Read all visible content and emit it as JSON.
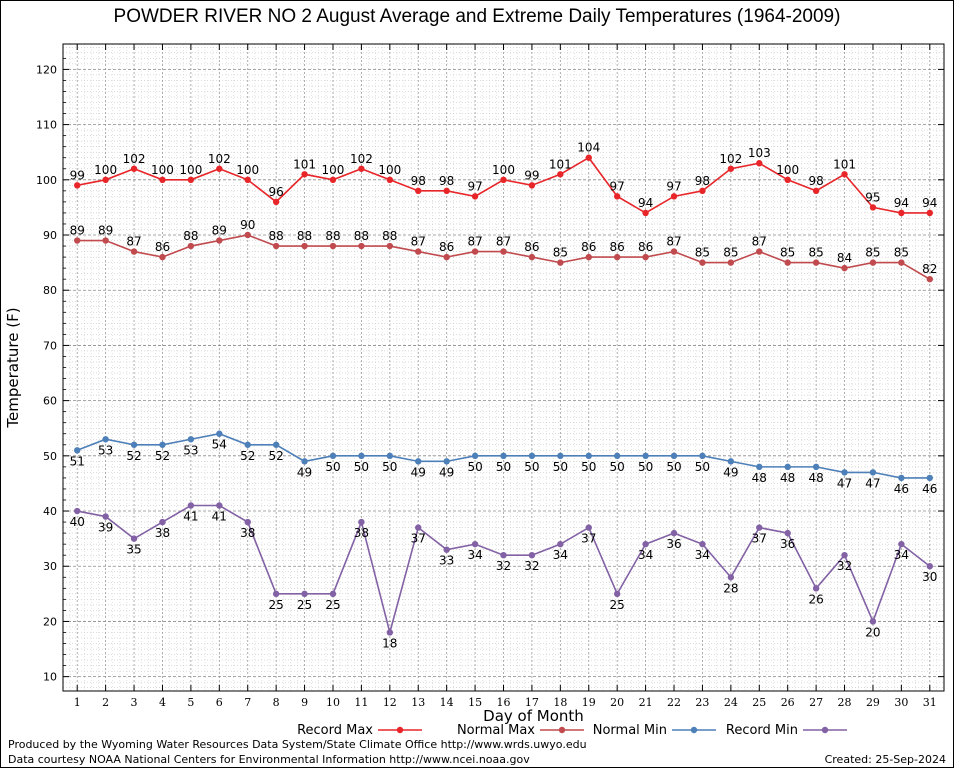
{
  "chart_data": {
    "type": "line",
    "title": "POWDER RIVER NO 2 August Average and Extreme Daily Temperatures (1964-2009)",
    "xlabel": "Day of Month",
    "ylabel": "Temperature (F)",
    "x": [
      1,
      2,
      3,
      4,
      5,
      6,
      7,
      8,
      9,
      10,
      11,
      12,
      13,
      14,
      15,
      16,
      17,
      18,
      19,
      20,
      21,
      22,
      23,
      24,
      25,
      26,
      27,
      28,
      29,
      30,
      31
    ],
    "xlim": [
      1,
      31
    ],
    "ylim": [
      10,
      120
    ],
    "yticks": [
      10,
      20,
      30,
      40,
      50,
      60,
      70,
      80,
      90,
      100,
      110,
      120
    ],
    "grid": true,
    "legend_position": "bottom",
    "series": [
      {
        "name": "Record Max",
        "color": "#e8262a",
        "label_pos": "above",
        "values": [
          99,
          100,
          102,
          100,
          100,
          102,
          100,
          96,
          101,
          100,
          102,
          100,
          98,
          98,
          97,
          100,
          99,
          101,
          104,
          97,
          94,
          97,
          98,
          102,
          103,
          100,
          98,
          101,
          95,
          94,
          94
        ]
      },
      {
        "name": "Normal Max",
        "color": "#c04a4e",
        "label_pos": "above",
        "values": [
          89,
          89,
          87,
          86,
          88,
          89,
          90,
          88,
          88,
          88,
          88,
          88,
          87,
          86,
          87,
          87,
          86,
          85,
          86,
          86,
          86,
          87,
          85,
          85,
          87,
          85,
          85,
          84,
          85,
          85,
          82
        ]
      },
      {
        "name": "Normal Min",
        "color": "#4d7fb8",
        "label_pos": "below",
        "values": [
          51,
          53,
          52,
          52,
          53,
          54,
          52,
          52,
          49,
          50,
          50,
          50,
          49,
          49,
          50,
          50,
          50,
          50,
          50,
          50,
          50,
          50,
          50,
          49,
          48,
          48,
          48,
          47,
          47,
          46,
          46
        ]
      },
      {
        "name": "Record Min",
        "color": "#8261a4",
        "label_pos": "below",
        "values": [
          40,
          39,
          35,
          38,
          41,
          41,
          38,
          25,
          25,
          25,
          38,
          18,
          37,
          33,
          34,
          32,
          32,
          34,
          37,
          25,
          34,
          36,
          34,
          28,
          37,
          36,
          26,
          32,
          20,
          34,
          30
        ]
      }
    ]
  },
  "footer": {
    "produced": "Produced by the Wyoming Water Resources Data System/State Climate Office http://www.wrds.uwyo.edu",
    "courtesy": "Data courtesy NOAA National Centers for Environmental Information http://www.ncei.noaa.gov",
    "created": "Created:  25-Sep-2024"
  }
}
